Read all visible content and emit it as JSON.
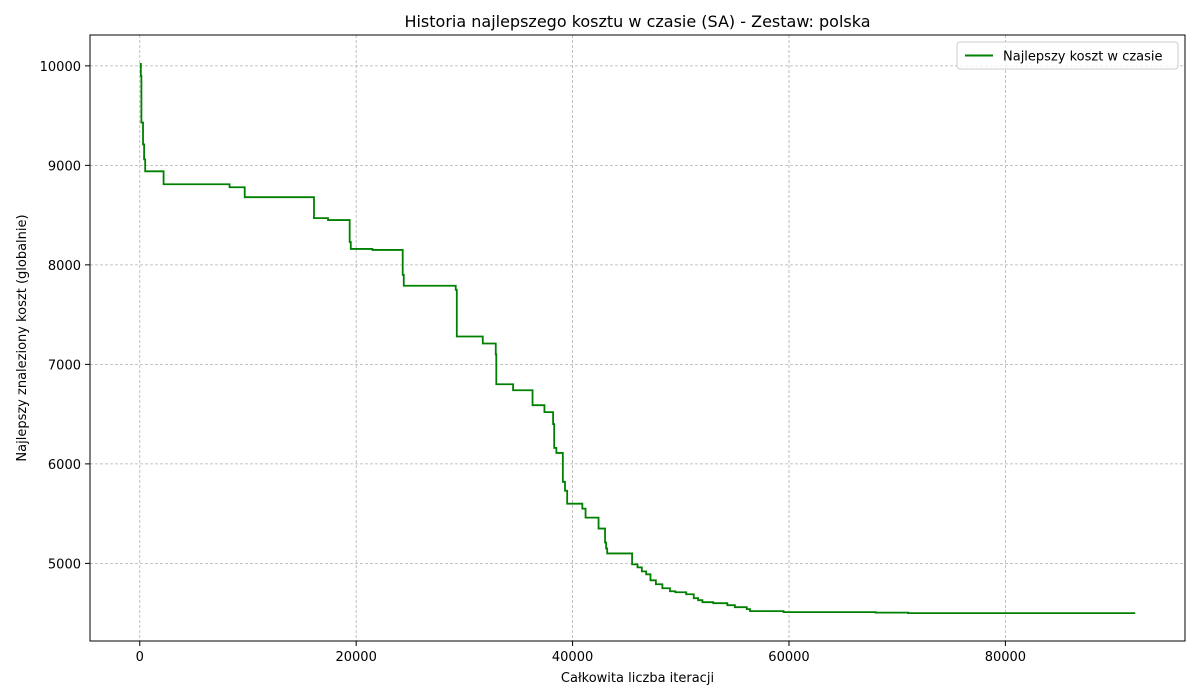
{
  "chart_data": {
    "type": "line",
    "title": "Historia najlepszego kosztu w czasie (SA) - Zestaw: polska",
    "xlabel": "Całkowita liczba iteracji",
    "ylabel": "Najlepszy znaleziony koszt (globalnie)",
    "xlim": [
      -4600,
      96600
    ],
    "ylim": [
      4220,
      10310
    ],
    "xticks": [
      0,
      20000,
      40000,
      60000,
      80000
    ],
    "yticks": [
      5000,
      6000,
      7000,
      8000,
      9000,
      10000
    ],
    "grid": true,
    "legend_position": "top-right",
    "step": true,
    "series": [
      {
        "name": "Najlepszy koszt w czasie",
        "color": "#008000",
        "x": [
          0,
          100,
          150,
          300,
          400,
          500,
          2200,
          8300,
          9700,
          16100,
          17400,
          19400,
          19500,
          21500,
          24300,
          24400,
          29200,
          29300,
          31700,
          32900,
          32950,
          34500,
          36300,
          37400,
          38200,
          38300,
          38500,
          39100,
          39300,
          39500,
          40900,
          41200,
          42400,
          43000,
          43100,
          43200,
          45500,
          46000,
          46400,
          46800,
          47200,
          47700,
          48300,
          49000,
          49500,
          50500,
          51200,
          51600,
          52000,
          53000,
          54300,
          55000,
          56100,
          56400,
          59500,
          63000,
          68000,
          71000,
          80000,
          92000
        ],
        "y": [
          10020,
          9900,
          9430,
          9210,
          9060,
          8940,
          8810,
          8780,
          8680,
          8470,
          8450,
          8230,
          8160,
          8150,
          7900,
          7790,
          7750,
          7280,
          7210,
          7100,
          6800,
          6740,
          6590,
          6520,
          6400,
          6160,
          6110,
          5820,
          5730,
          5600,
          5550,
          5460,
          5350,
          5210,
          5150,
          5100,
          4990,
          4960,
          4920,
          4890,
          4830,
          4790,
          4750,
          4720,
          4710,
          4690,
          4650,
          4630,
          4610,
          4600,
          4580,
          4560,
          4540,
          4520,
          4510,
          4510,
          4505,
          4500,
          4500,
          4500
        ]
      }
    ]
  }
}
